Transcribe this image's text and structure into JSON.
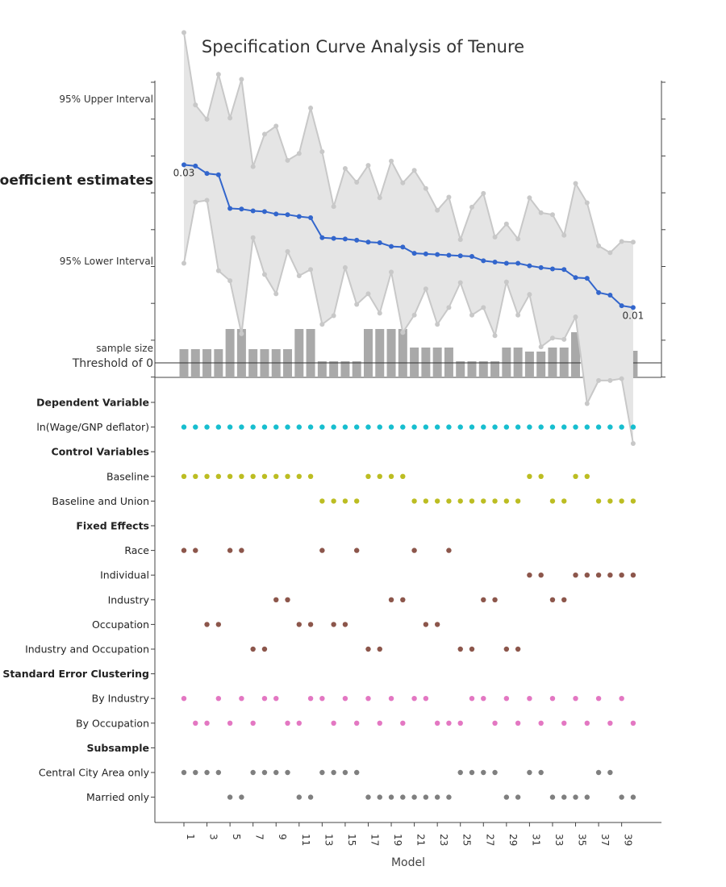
{
  "chart_data": {
    "type": "specification-curve",
    "title": "Specification Curve Analysis of Tenure",
    "xlabel": "Model",
    "x_ticks": [
      1,
      3,
      5,
      7,
      9,
      11,
      13,
      15,
      17,
      19,
      21,
      23,
      25,
      27,
      29,
      31,
      33,
      35,
      37,
      39
    ],
    "top_labels": {
      "upper": "95% Upper Interval",
      "coef": "coefficient estimates",
      "lower": "95% Lower Interval",
      "sample": "sample size",
      "threshold": "Threshold of 0"
    },
    "first_label": "0.03",
    "last_label": "0.01",
    "coef": [
      0.0322,
      0.032,
      0.0308,
      0.0306,
      0.0252,
      0.0251,
      0.0248,
      0.0247,
      0.0243,
      0.0242,
      0.0239,
      0.0237,
      0.0205,
      0.0204,
      0.0203,
      0.0201,
      0.0198,
      0.0197,
      0.0191,
      0.019,
      0.018,
      0.0179,
      0.0178,
      0.0177,
      0.0176,
      0.0175,
      0.0168,
      0.0166,
      0.0164,
      0.0164,
      0.016,
      0.0157,
      0.0155,
      0.0154,
      0.0141,
      0.014,
      0.0117,
      0.0113,
      0.0096,
      0.0093
    ],
    "upper": [
      0.0534,
      0.0418,
      0.0395,
      0.0467,
      0.0397,
      0.0459,
      0.0319,
      0.0371,
      0.0384,
      0.0329,
      0.034,
      0.0413,
      0.0343,
      0.0255,
      0.0316,
      0.0294,
      0.0321,
      0.0269,
      0.0328,
      0.0293,
      0.0313,
      0.0284,
      0.0249,
      0.027,
      0.0202,
      0.0254,
      0.0276,
      0.0206,
      0.0227,
      0.0203,
      0.0269,
      0.0245,
      0.0242,
      0.0209,
      0.0292,
      0.0261,
      0.0192,
      0.0181,
      0.0199,
      0.0198
    ],
    "lower": [
      0.0164,
      0.0262,
      0.0265,
      0.0152,
      0.0136,
      0.0051,
      0.0205,
      0.0146,
      0.0115,
      0.0183,
      0.0144,
      0.0154,
      0.0066,
      0.008,
      0.0157,
      0.0098,
      0.0115,
      0.0084,
      0.015,
      0.0053,
      0.0081,
      0.0123,
      0.0066,
      0.0093,
      0.0133,
      0.0081,
      0.0093,
      0.0048,
      0.0134,
      0.0081,
      0.0114,
      0.003,
      0.0044,
      0.0042,
      0.0078,
      -0.0061,
      -0.0024,
      -0.0024,
      -0.0021,
      -0.0125
    ],
    "sample_size": [
      0.35,
      0.35,
      0.35,
      0.35,
      0.6,
      0.6,
      0.35,
      0.35,
      0.35,
      0.35,
      0.6,
      0.6,
      0.2,
      0.2,
      0.2,
      0.2,
      0.6,
      0.6,
      0.6,
      0.6,
      0.37,
      0.37,
      0.37,
      0.37,
      0.2,
      0.2,
      0.2,
      0.2,
      0.37,
      0.37,
      0.32,
      0.32,
      0.37,
      0.37,
      0.56,
      0.56,
      0.18,
      0.18,
      0.33,
      0.33
    ],
    "rows": [
      {
        "label": "Dependent Variable",
        "header": true
      },
      {
        "label": "ln(Wage/GNP deflator)",
        "color": "#17becf",
        "models": [
          1,
          2,
          3,
          4,
          5,
          6,
          7,
          8,
          9,
          10,
          11,
          12,
          13,
          14,
          15,
          16,
          17,
          18,
          19,
          20,
          21,
          22,
          23,
          24,
          25,
          26,
          27,
          28,
          29,
          30,
          31,
          32,
          33,
          34,
          35,
          36,
          37,
          38,
          39,
          40
        ]
      },
      {
        "label": "Control Variables",
        "header": true
      },
      {
        "label": "Baseline",
        "color": "#bcbd22",
        "models": [
          1,
          2,
          3,
          4,
          5,
          6,
          7,
          8,
          9,
          10,
          11,
          12,
          17,
          18,
          19,
          20,
          31,
          32,
          35,
          36
        ]
      },
      {
        "label": "Baseline and Union",
        "color": "#bcbd22",
        "models": [
          13,
          14,
          15,
          16,
          21,
          22,
          23,
          24,
          25,
          26,
          27,
          28,
          29,
          30,
          33,
          34,
          37,
          38,
          39,
          40
        ]
      },
      {
        "label": "Fixed Effects",
        "header": true
      },
      {
        "label": "Race",
        "color": "#8c564b",
        "models": [
          1,
          2,
          5,
          6,
          13,
          16,
          21,
          24
        ]
      },
      {
        "label": "Individual",
        "color": "#8c564b",
        "models": [
          31,
          32,
          35,
          36,
          37,
          38,
          39,
          40
        ]
      },
      {
        "label": "Industry",
        "color": "#8c564b",
        "models": [
          9,
          10,
          19,
          20,
          27,
          28,
          33,
          34
        ]
      },
      {
        "label": "Occupation",
        "color": "#8c564b",
        "models": [
          3,
          4,
          11,
          12,
          14,
          15,
          22,
          23
        ]
      },
      {
        "label": "Industry and Occupation",
        "color": "#8c564b",
        "models": [
          7,
          8,
          17,
          18,
          25,
          26,
          29,
          30
        ]
      },
      {
        "label": "Standard Error Clustering",
        "header": true
      },
      {
        "label": "By Industry",
        "color": "#e377c2",
        "models": [
          1,
          4,
          6,
          8,
          9,
          12,
          13,
          15,
          17,
          19,
          21,
          22,
          26,
          27,
          29,
          31,
          33,
          35,
          37,
          39
        ]
      },
      {
        "label": "By Occupation",
        "color": "#e377c2",
        "models": [
          2,
          3,
          5,
          7,
          10,
          11,
          14,
          16,
          18,
          20,
          23,
          24,
          25,
          28,
          30,
          32,
          34,
          36,
          38,
          40
        ]
      },
      {
        "label": "Subsample",
        "header": true
      },
      {
        "label": "Central City Area only",
        "color": "#7f7f7f",
        "models": [
          1,
          2,
          3,
          4,
          7,
          8,
          9,
          10,
          13,
          14,
          15,
          16,
          25,
          26,
          27,
          28,
          31,
          32,
          37,
          38
        ]
      },
      {
        "label": "Married only",
        "color": "#7f7f7f",
        "models": [
          5,
          6,
          11,
          12,
          17,
          18,
          19,
          20,
          21,
          22,
          23,
          24,
          29,
          30,
          33,
          34,
          35,
          36,
          39,
          40
        ]
      }
    ],
    "colors": {
      "coef_line": "#3366cc",
      "ci": "#c8c8c8",
      "ci_fill": "#e5e5e5",
      "bars": "#a9a9a9"
    }
  }
}
